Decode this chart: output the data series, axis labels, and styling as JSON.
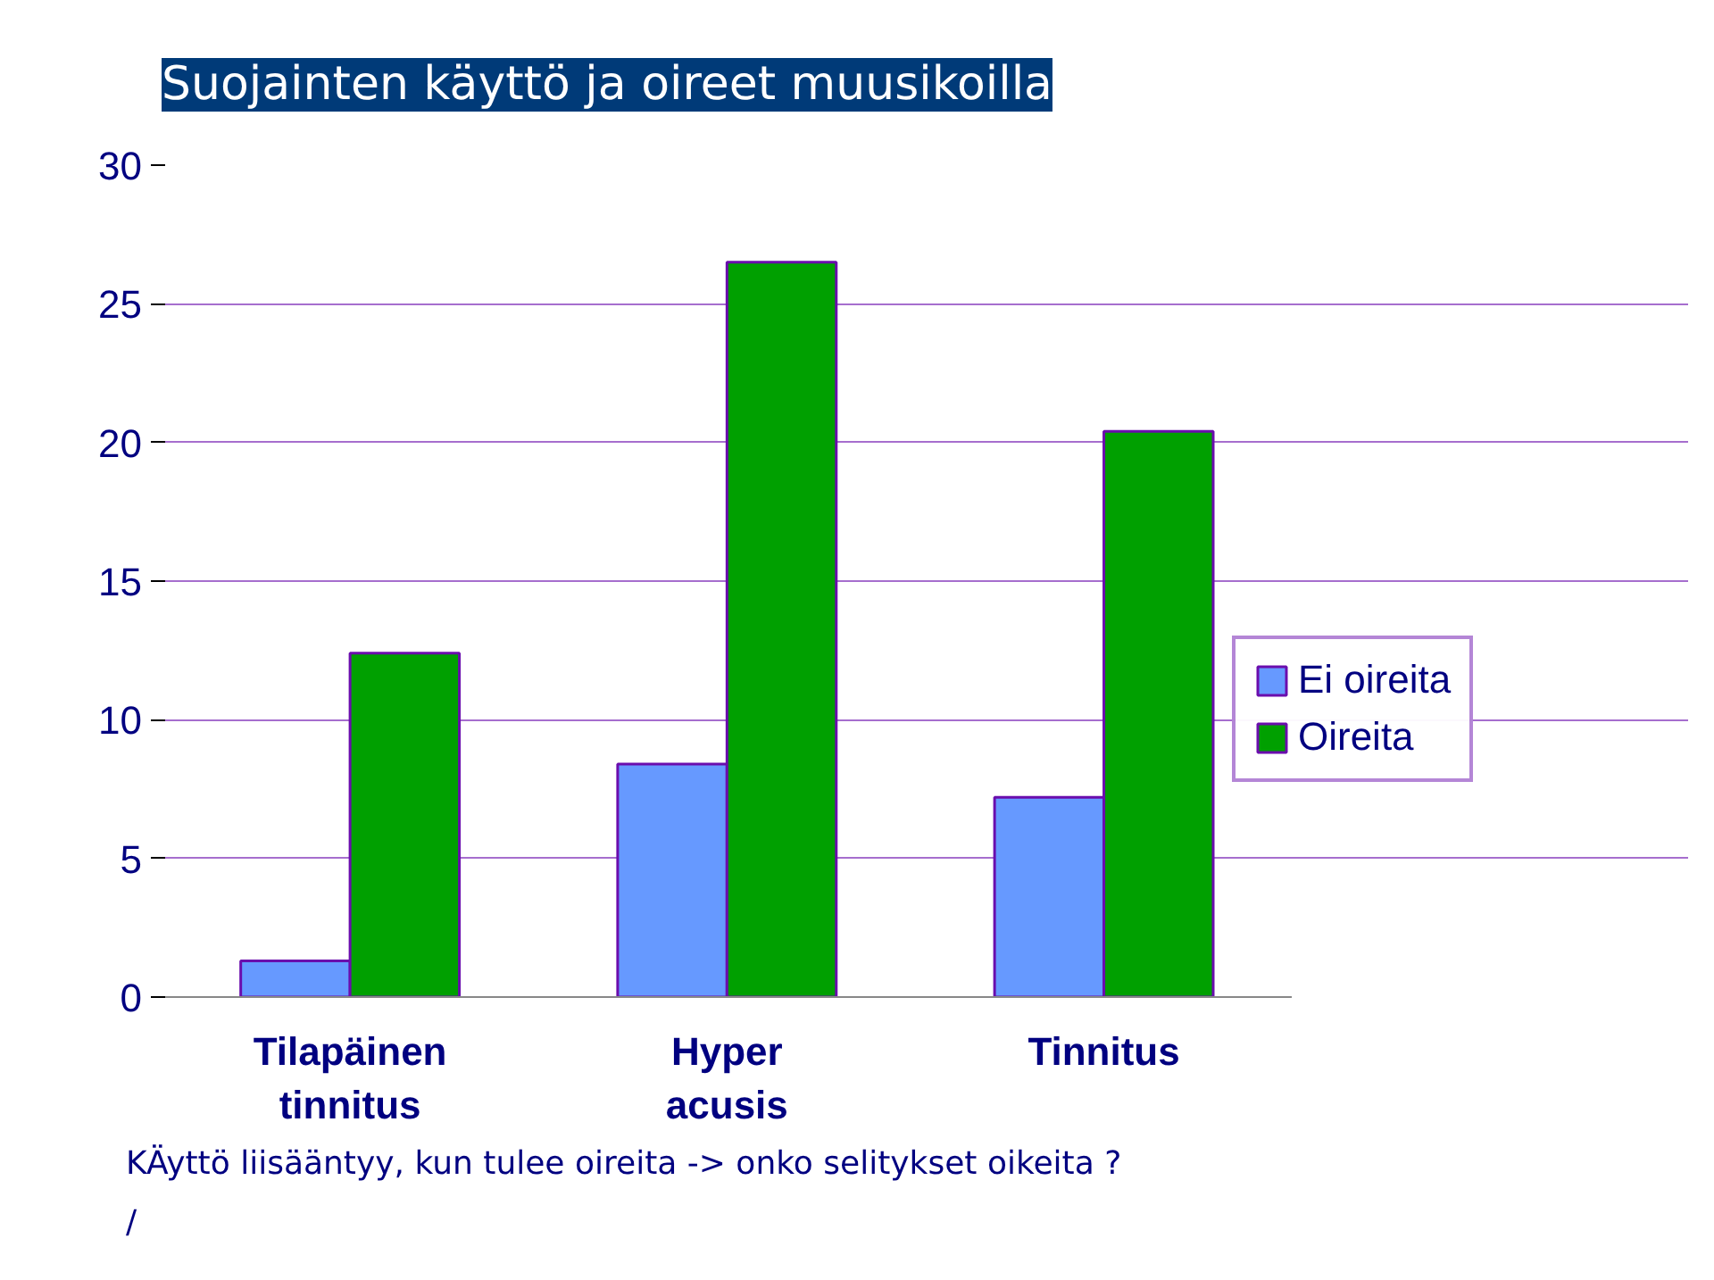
{
  "chart_data": {
    "type": "bar",
    "title": "Suojainten käyttö ja oireet muusikoilla",
    "categories": [
      "Tilapäinen\ntinnitus",
      "Hyper\nacusis",
      "Tinnitus"
    ],
    "series": [
      {
        "name": "Ei oireita",
        "color": "#6699ff",
        "values": [
          1.3,
          8.4,
          7.2
        ]
      },
      {
        "name": "Oireita",
        "color": "#00a000",
        "values": [
          12.4,
          26.5,
          20.4
        ]
      }
    ],
    "ylim": [
      0,
      30
    ],
    "yticks": [
      0,
      5,
      10,
      15,
      20,
      25,
      30
    ],
    "grid": "y",
    "legend": "right",
    "annotations": [
      "KÄyttö liisääntyy, kun tulee oireita -> onko selitykset oikeita ?",
      "/"
    ]
  }
}
